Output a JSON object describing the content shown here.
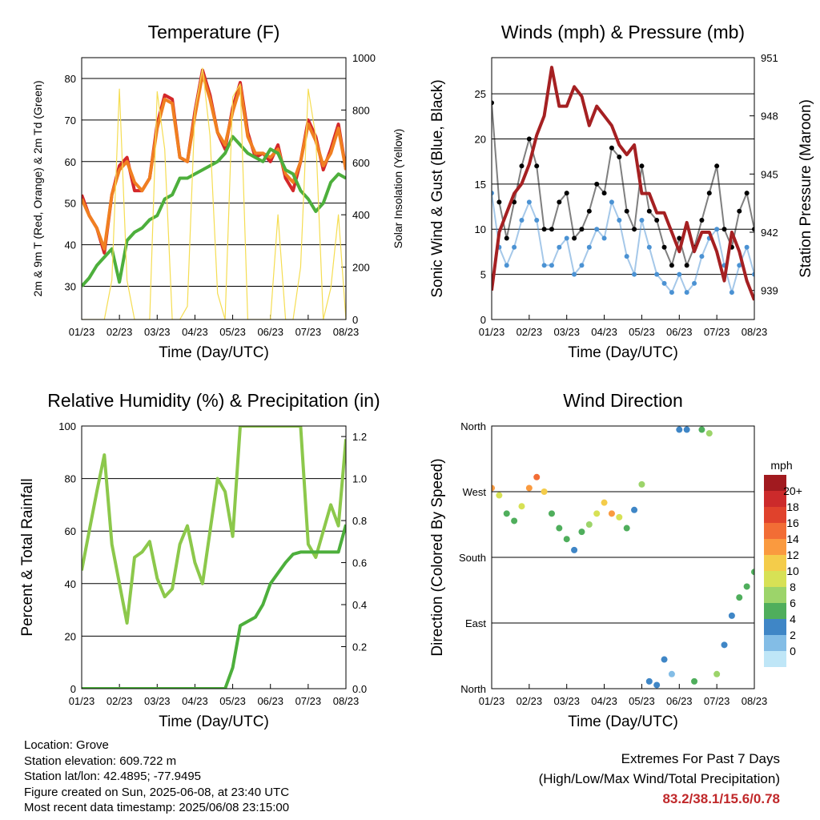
{
  "common": {
    "xlabel": "Time (Day/UTC)",
    "xticks": [
      "01/23",
      "02/23",
      "03/23",
      "04/23",
      "05/23",
      "06/23",
      "07/23",
      "08/23"
    ]
  },
  "chart_data": [
    {
      "id": "temperature",
      "type": "line",
      "title": "Temperature (F)",
      "xlabel": "Time (Day/UTC)",
      "ylabel": "2m & 9m T (Red, Orange) & 2m Td (Green)",
      "ylabel_right": "Solar Insolation (Yellow)",
      "ylim": [
        22,
        85
      ],
      "yticks": [
        30,
        40,
        50,
        60,
        70,
        80
      ],
      "ylim_right": [
        0,
        1000
      ],
      "yticks_right": [
        0,
        200,
        400,
        600,
        800,
        1000
      ],
      "x": [
        0,
        0.2,
        0.4,
        0.6,
        0.8,
        1.0,
        1.2,
        1.4,
        1.6,
        1.8,
        2.0,
        2.2,
        2.4,
        2.6,
        2.8,
        3.0,
        3.2,
        3.4,
        3.6,
        3.8,
        4.0,
        4.2,
        4.4,
        4.6,
        4.8,
        5.0,
        5.2,
        5.4,
        5.6,
        5.8,
        6.0,
        6.2,
        6.4,
        6.6,
        6.8,
        7.0
      ],
      "series": [
        {
          "color": "#d4282a",
          "values": [
            52,
            47,
            44,
            38,
            52,
            59,
            61,
            53,
            53,
            56,
            69,
            76,
            75,
            61,
            60,
            72,
            82,
            76,
            67,
            63,
            73,
            79,
            67,
            61,
            62,
            60,
            64,
            56,
            53,
            60,
            70,
            66,
            58,
            63,
            69,
            58
          ]
        },
        {
          "color": "#f07f21",
          "values": [
            51,
            47,
            44,
            39,
            52,
            58,
            60,
            55,
            53,
            56,
            68,
            75,
            74,
            61,
            60,
            71,
            81,
            75,
            67,
            64,
            72,
            78,
            66,
            62,
            62,
            61,
            63,
            57,
            55,
            60,
            69,
            65,
            59,
            62,
            68,
            58
          ]
        },
        {
          "color": "#4daf3c",
          "values": [
            30,
            32,
            35,
            37,
            39,
            31,
            41,
            43,
            44,
            46,
            47,
            51,
            52,
            56,
            56,
            57,
            58,
            59,
            60,
            62,
            66,
            64,
            62,
            61,
            60,
            63,
            62,
            58,
            57,
            53,
            51,
            48,
            50,
            55,
            57,
            56
          ]
        },
        {
          "color": "#f5dd52",
          "axis": "right",
          "values": [
            0,
            0,
            0,
            0,
            150,
            880,
            150,
            0,
            0,
            0,
            870,
            650,
            0,
            0,
            50,
            800,
            960,
            700,
            100,
            0,
            850,
            900,
            0,
            0,
            0,
            0,
            400,
            0,
            0,
            200,
            880,
            700,
            0,
            120,
            400,
            0
          ]
        }
      ]
    },
    {
      "id": "winds",
      "type": "scatter",
      "title": "Winds (mph) & Pressure (mb)",
      "xlabel": "Time (Day/UTC)",
      "ylabel": "Sonic Wind & Gust (Blue, Black)",
      "ylabel_right": "Station Pressure (Maroon)",
      "ylim": [
        0,
        29
      ],
      "yticks": [
        0,
        5,
        10,
        15,
        20,
        25
      ],
      "ylim_right": [
        937.5,
        951
      ],
      "yticks_right": [
        939,
        942,
        945,
        948,
        951
      ],
      "x": [
        0,
        0.2,
        0.4,
        0.6,
        0.8,
        1.0,
        1.2,
        1.4,
        1.6,
        1.8,
        2.0,
        2.2,
        2.4,
        2.6,
        2.8,
        3.0,
        3.2,
        3.4,
        3.6,
        3.8,
        4.0,
        4.2,
        4.4,
        4.6,
        4.8,
        5.0,
        5.2,
        5.4,
        5.6,
        5.8,
        6.0,
        6.2,
        6.4,
        6.6,
        6.8,
        7.0
      ],
      "series": [
        {
          "color": "#000000",
          "values": [
            24,
            13,
            9,
            13,
            17,
            20,
            17,
            10,
            10,
            13,
            14,
            9,
            10,
            12,
            15,
            14,
            19,
            18,
            12,
            10,
            17,
            12,
            11,
            8,
            6,
            9,
            6,
            8,
            11,
            14,
            17,
            10,
            8,
            12,
            14,
            10
          ]
        },
        {
          "color": "#4b92d3",
          "values": [
            14,
            8,
            6,
            8,
            11,
            13,
            11,
            6,
            6,
            8,
            9,
            5,
            6,
            8,
            10,
            9,
            13,
            11,
            7,
            5,
            11,
            8,
            5,
            4,
            3,
            5,
            3,
            4,
            7,
            9,
            10,
            6,
            3,
            6,
            8,
            5
          ]
        },
        {
          "color": "#a52022",
          "axis": "right",
          "values": [
            939,
            942,
            943,
            944,
            944.5,
            945.5,
            947,
            948,
            950.5,
            948.5,
            948.5,
            949.5,
            949,
            947.5,
            948.5,
            948,
            947.5,
            946.5,
            946,
            946.5,
            944,
            944,
            943,
            943,
            942,
            941,
            942.5,
            941,
            942,
            942,
            941,
            939.5,
            942,
            941,
            939.5,
            938.5
          ]
        }
      ]
    },
    {
      "id": "humidity",
      "type": "line",
      "title": "Relative Humidity (%) & Precipitation (in)",
      "xlabel": "Time (Day/UTC)",
      "ylabel": "Percent & Total Rainfall",
      "ylim": [
        0,
        100
      ],
      "yticks": [
        0,
        20,
        40,
        60,
        80,
        100
      ],
      "ylim_right": [
        0,
        1.25
      ],
      "yticks_right": [
        0.0,
        0.2,
        0.4,
        0.6,
        0.8,
        1.0,
        1.2
      ],
      "x": [
        0,
        0.2,
        0.4,
        0.6,
        0.8,
        1.0,
        1.2,
        1.4,
        1.6,
        1.8,
        2.0,
        2.2,
        2.4,
        2.6,
        2.8,
        3.0,
        3.2,
        3.4,
        3.6,
        3.8,
        4.0,
        4.2,
        4.4,
        4.6,
        4.8,
        5.0,
        5.2,
        5.4,
        5.6,
        5.8,
        6.0,
        6.2,
        6.4,
        6.6,
        6.8,
        7.0
      ],
      "series": [
        {
          "color": "#8cc84b",
          "values": [
            45,
            60,
            75,
            89,
            55,
            40,
            25,
            50,
            52,
            56,
            42,
            35,
            38,
            55,
            62,
            48,
            40,
            60,
            80,
            75,
            58,
            100,
            100,
            100,
            100,
            100,
            100,
            100,
            100,
            100,
            55,
            50,
            60,
            70,
            62,
            95
          ]
        },
        {
          "color": "#4daf3c",
          "axis": "right",
          "values": [
            0,
            0,
            0,
            0,
            0,
            0,
            0,
            0,
            0,
            0,
            0,
            0,
            0,
            0,
            0,
            0,
            0,
            0,
            0,
            0,
            0.1,
            0.3,
            0.32,
            0.34,
            0.4,
            0.5,
            0.55,
            0.6,
            0.64,
            0.65,
            0.65,
            0.65,
            0.65,
            0.65,
            0.65,
            0.78
          ]
        }
      ]
    },
    {
      "id": "direction",
      "type": "scatter",
      "title": "Wind Direction",
      "xlabel": "Time (Day/UTC)",
      "ylabel": "Direction (Colored By Speed)",
      "ylim": [
        0,
        360
      ],
      "yticks": [
        "North",
        "East",
        "South",
        "West",
        "North"
      ],
      "legend_title": "mph",
      "legend_labels": [
        "20+",
        "18",
        "16",
        "14",
        "12",
        "10",
        "8",
        "6",
        "4",
        "2",
        "0"
      ],
      "legend_colors": [
        "#a11a1f",
        "#cc2a2b",
        "#e0422c",
        "#f26d35",
        "#fa9a3f",
        "#f4cc4a",
        "#d7e155",
        "#9cd46a",
        "#4fae5c",
        "#3f86c6",
        "#83bde6",
        "#bfe6f7"
      ],
      "x": [
        0,
        0.2,
        0.4,
        0.6,
        0.8,
        1.0,
        1.2,
        1.4,
        1.6,
        1.8,
        2.0,
        2.2,
        2.4,
        2.6,
        2.8,
        3.0,
        3.2,
        3.4,
        3.6,
        3.8,
        4.0,
        4.2,
        4.4,
        4.6,
        4.8,
        5.0,
        5.2,
        5.4,
        5.6,
        5.8,
        6.0,
        6.2,
        6.4,
        6.6,
        6.8,
        7.0
      ],
      "direction": [
        275,
        265,
        240,
        230,
        250,
        275,
        290,
        270,
        240,
        220,
        205,
        190,
        215,
        225,
        240,
        255,
        240,
        235,
        220,
        245,
        280,
        10,
        5,
        40,
        20,
        355,
        355,
        10,
        355,
        350,
        20,
        60,
        100,
        125,
        140,
        160
      ],
      "speed": [
        14,
        10,
        6,
        5,
        9,
        14,
        15,
        11,
        6,
        6,
        5,
        4,
        6,
        8,
        9,
        11,
        13,
        10,
        5,
        4,
        8,
        4,
        3,
        3,
        2,
        4,
        3,
        6,
        6,
        7,
        8,
        3,
        4,
        5,
        6,
        5
      ]
    }
  ],
  "station": {
    "location": "Location: Grove",
    "elevation": "Station elevation: 609.722 m",
    "latlon": "Station lat/lon: 42.4895; -77.9495",
    "created": "Figure created on Sun, 2025-06-08, at 23:40 UTC",
    "timestamp": "Most recent data timestamp: 2025/06/08 23:15:00"
  },
  "extremes": {
    "title": "Extremes For Past 7 Days",
    "subtitle": "(High/Low/Max Wind/Total Precipitation)",
    "values": "83.2/38.1/15.6/0.78"
  }
}
